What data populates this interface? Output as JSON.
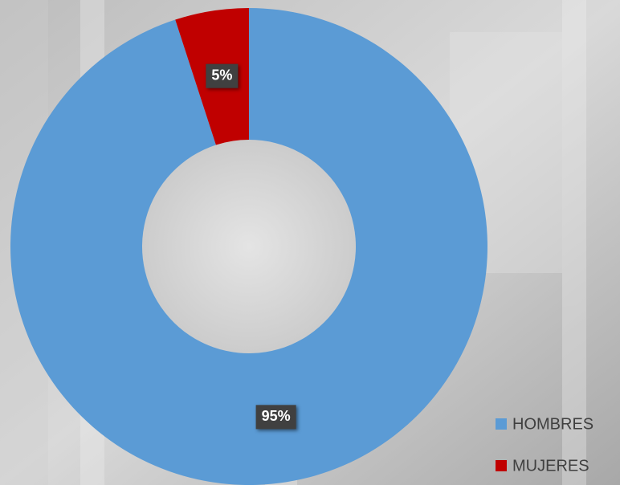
{
  "chart_data": {
    "type": "donut",
    "categories": [
      "HOMBRES",
      "MUJERES"
    ],
    "values": [
      95,
      5
    ],
    "value_labels": [
      "95%",
      "5%"
    ],
    "colors": [
      "#5b9bd5",
      "#c00000"
    ],
    "legend": "lower right"
  }
}
